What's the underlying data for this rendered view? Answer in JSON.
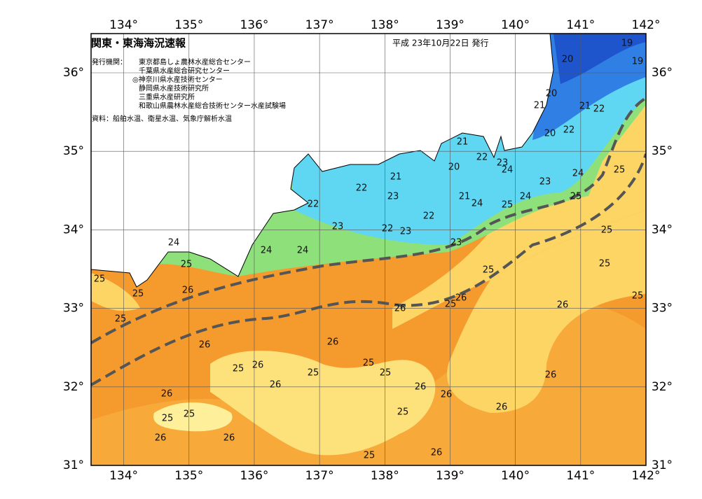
{
  "header": {
    "title": "関東・東海海況速報",
    "date": "平成 23年10月22日 発行"
  },
  "issuers": {
    "label": "発行機関：",
    "list": [
      "東京都島しょ農林水産総合センター",
      "千葉県水産総合研究センター",
      "◎神奈川県水産技術センター",
      "静岡県水産技術研究所",
      "三重県水産研究所",
      "和歌山県農林水産総合技術センター水産試験場"
    ]
  },
  "source": "資料：船舶水温、衛星水温、気象庁解析水温",
  "lon_ticks": [
    {
      "value": 134,
      "label": "134°"
    },
    {
      "value": 135,
      "label": "135°"
    },
    {
      "value": 136,
      "label": "136°"
    },
    {
      "value": 137,
      "label": "137°"
    },
    {
      "value": 138,
      "label": "138°"
    },
    {
      "value": 139,
      "label": "139°"
    },
    {
      "value": 140,
      "label": "140°"
    },
    {
      "value": 141,
      "label": "141°"
    },
    {
      "value": 142,
      "label": "142°"
    }
  ],
  "lat_ticks": [
    {
      "value": 31,
      "label": "31°"
    },
    {
      "value": 32,
      "label": "32°"
    },
    {
      "value": 33,
      "label": "33°"
    },
    {
      "value": 34,
      "label": "34°"
    },
    {
      "value": 35,
      "label": "35°"
    },
    {
      "value": 36,
      "label": "36°"
    }
  ],
  "contour_labels": [
    19,
    19,
    20,
    20,
    21,
    21,
    22,
    20,
    22,
    21,
    22,
    23,
    20,
    24,
    24,
    25,
    23,
    21,
    22,
    23,
    21,
    24,
    24,
    25,
    25,
    22,
    22,
    23,
    22,
    23,
    25,
    23,
    24,
    24,
    24,
    25,
    25,
    25,
    25,
    25,
    26,
    25,
    26,
    25,
    26,
    26,
    25,
    26,
    26,
    25,
    26,
    25,
    25,
    25,
    26,
    26,
    26,
    26,
    26,
    25,
    25,
    25,
    26,
    26,
    26,
    26,
    25
  ]
}
